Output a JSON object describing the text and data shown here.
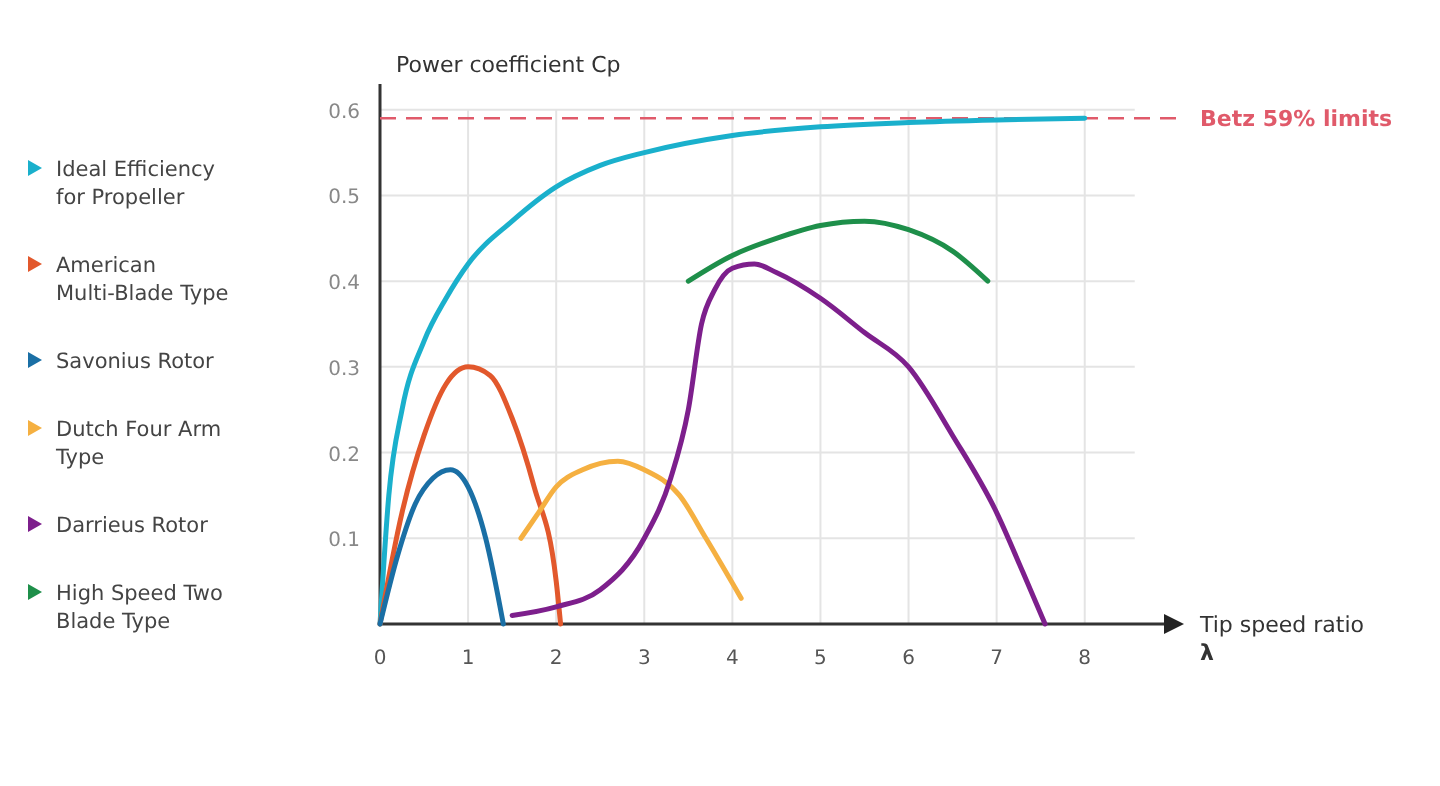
{
  "chart_data": {
    "type": "line",
    "ylabel": "Power coefficient Cp",
    "xlabel": "Tip speed ratio\nλ",
    "xlim": [
      0,
      8.9
    ],
    "ylim": [
      0,
      0.63
    ],
    "xticks": [
      0,
      1,
      2,
      3,
      4,
      5,
      6,
      7,
      8
    ],
    "yticks": [
      0.1,
      0.2,
      0.3,
      0.4,
      0.5,
      0.6
    ],
    "grid": true,
    "legend": "left",
    "marker": "none",
    "line_style": "solid",
    "ref_lines": [
      {
        "axis": "y",
        "value": 0.59,
        "label": "Betz 59% limits",
        "color": "#e05a6a",
        "line_style": "dashed"
      }
    ],
    "series": [
      {
        "name": "Ideal Efficiency for Propeller",
        "color": "#1ab0cc",
        "x": [
          0,
          0.1,
          0.25,
          0.5,
          0.75,
          1,
          1.5,
          2,
          2.5,
          3,
          4,
          5,
          6,
          7,
          8
        ],
        "values": [
          0,
          0.15,
          0.25,
          0.33,
          0.38,
          0.42,
          0.47,
          0.51,
          0.535,
          0.55,
          0.57,
          0.58,
          0.585,
          0.588,
          0.59
        ]
      },
      {
        "name": "American Multi-Blade Type",
        "color": "#e2582c",
        "x": [
          0,
          0.25,
          0.5,
          0.75,
          1,
          1.25,
          1.5,
          1.75,
          2,
          2.05
        ],
        "values": [
          0,
          0.13,
          0.22,
          0.28,
          0.3,
          0.29,
          0.24,
          0.16,
          0.05,
          0
        ]
      },
      {
        "name": "Savonius Rotor",
        "color": "#1a6fa5",
        "x": [
          0,
          0.2,
          0.4,
          0.6,
          0.8,
          1,
          1.2,
          1.4
        ],
        "values": [
          0,
          0.08,
          0.14,
          0.17,
          0.18,
          0.16,
          0.1,
          0
        ]
      },
      {
        "name": "Dutch Four Arm Type",
        "color": "#f5b041",
        "x": [
          1.6,
          1.8,
          2,
          2.3,
          2.7,
          3,
          3.4,
          3.7,
          4.1
        ],
        "values": [
          0.1,
          0.13,
          0.16,
          0.18,
          0.19,
          0.18,
          0.15,
          0.1,
          0.03
        ]
      },
      {
        "name": "Darrieus Rotor",
        "color": "#7d1f8c",
        "x": [
          1.5,
          2,
          2.5,
          3,
          3.3,
          3.5,
          3.65,
          3.8,
          4,
          4.25,
          4.5,
          5,
          5.5,
          6,
          6.5,
          7,
          7.3,
          7.55
        ],
        "values": [
          0.01,
          0.02,
          0.04,
          0.1,
          0.17,
          0.25,
          0.35,
          0.39,
          0.415,
          0.42,
          0.41,
          0.38,
          0.34,
          0.3,
          0.22,
          0.13,
          0.06,
          0
        ]
      },
      {
        "name": "High Speed Two Blade Type",
        "color": "#1e8f4a",
        "x": [
          3.5,
          4,
          4.5,
          5,
          5.5,
          6,
          6.5,
          6.9
        ],
        "values": [
          0.4,
          0.43,
          0.45,
          0.465,
          0.47,
          0.46,
          0.435,
          0.4
        ]
      }
    ]
  }
}
